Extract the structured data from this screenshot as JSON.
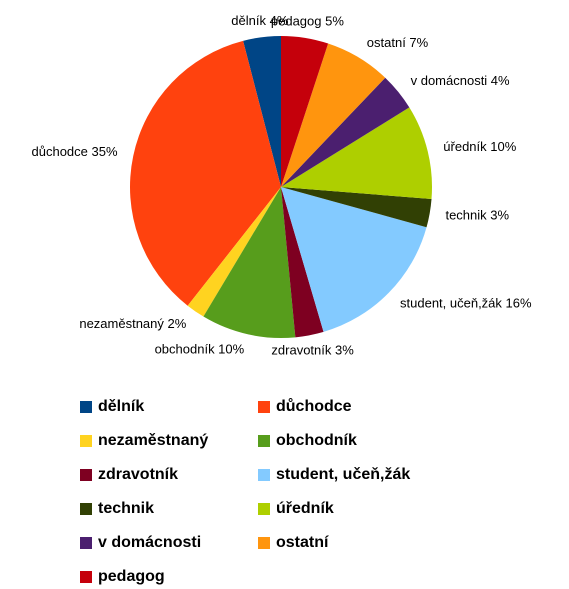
{
  "chart_data": {
    "type": "pie",
    "categories": [
      "dělník",
      "důchodce",
      "nezaměstnaný",
      "obchodník",
      "zdravotník",
      "student, učeň,žák",
      "technik",
      "úředník",
      "v domácnosti",
      "ostatní",
      "pedagog"
    ],
    "values": [
      4,
      35,
      2,
      10,
      3,
      16,
      3,
      10,
      4,
      7,
      5
    ],
    "value_labels": [
      "dělník 4%",
      "důchodce 35%",
      "nezaměstnaný 2%",
      "obchodník 10%",
      "zdravotník 3%",
      "student, učeň,žák 16%",
      "technik 3%",
      "úředník 10%",
      "v domácnosti 4%",
      "ostatní 7%",
      "pedagog 5%"
    ],
    "colors": [
      "#004586",
      "#ff420e",
      "#ffd320",
      "#579d1c",
      "#7e0021",
      "#83caff",
      "#314004",
      "#aecf00",
      "#4b1f6f",
      "#ff950e",
      "#c5000b"
    ],
    "direction": "counterclockwise",
    "legend": "bottom"
  }
}
